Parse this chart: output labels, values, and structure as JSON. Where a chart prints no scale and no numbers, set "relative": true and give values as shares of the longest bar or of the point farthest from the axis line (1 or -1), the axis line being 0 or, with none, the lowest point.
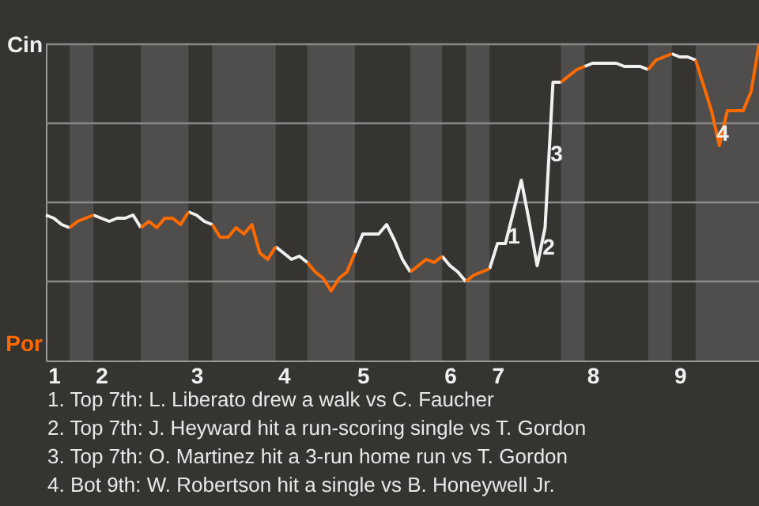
{
  "chart_data": {
    "type": "line",
    "relative": true,
    "tick_labels": "x",
    "categories": [
      null,
      "1",
      null,
      null,
      null,
      null,
      null,
      "2",
      null,
      null,
      null,
      null,
      null,
      null,
      null,
      null,
      null,
      null,
      null,
      "3",
      null,
      null,
      null,
      null,
      null,
      null,
      null,
      null,
      null,
      null,
      "4",
      null,
      null,
      null,
      null,
      null,
      null,
      null,
      null,
      null,
      "5",
      null,
      null,
      null,
      null,
      null,
      null,
      null,
      null,
      null,
      null,
      "6",
      null,
      null,
      null,
      null,
      null,
      "7",
      null,
      null,
      null,
      null,
      null,
      null,
      null,
      null,
      null,
      null,
      null,
      "8",
      null,
      null,
      null,
      null,
      null,
      null,
      null,
      null,
      null,
      null,
      "9",
      null,
      null,
      null,
      null,
      null,
      null,
      null,
      null,
      null,
      null
    ],
    "series": [
      {
        "color": "#f0f0f0",
        "values": [
          0.46,
          0.45,
          0.43,
          0.42,
          null,
          null,
          0.46,
          0.45,
          0.44,
          0.45,
          0.45,
          0.46,
          0.42,
          null,
          null,
          null,
          null,
          null,
          0.47,
          0.46,
          0.44,
          0.43,
          null,
          null,
          null,
          null,
          null,
          null,
          null,
          0.36,
          0.34,
          0.32,
          0.33,
          0.31,
          null,
          null,
          null,
          null,
          null,
          0.34,
          0.4,
          0.4,
          0.4,
          0.43,
          0.38,
          0.32,
          0.28,
          null,
          null,
          null,
          0.33,
          0.3,
          0.28,
          0.25,
          null,
          null,
          0.29,
          0.37,
          0.37,
          0.47,
          0.57,
          0.44,
          0.3,
          0.42,
          0.88,
          0.88,
          null,
          null,
          0.93,
          0.94,
          0.94,
          0.94,
          0.94,
          0.93,
          0.93,
          0.93,
          0.92,
          null,
          null,
          0.97,
          0.96,
          0.96,
          0.95,
          null,
          null,
          null,
          null,
          null,
          null,
          null,
          null
        ]
      },
      {
        "color": "#ff6a00",
        "values": [
          null,
          null,
          null,
          0.42,
          0.44,
          0.45,
          0.46,
          null,
          null,
          null,
          null,
          null,
          0.42,
          0.44,
          0.42,
          0.45,
          0.45,
          0.43,
          0.47,
          null,
          null,
          0.43,
          0.39,
          0.39,
          0.42,
          0.4,
          0.43,
          0.34,
          0.32,
          0.36,
          null,
          null,
          null,
          0.31,
          0.28,
          0.26,
          0.22,
          0.26,
          0.28,
          0.34,
          null,
          null,
          null,
          null,
          null,
          null,
          0.28,
          0.3,
          0.32,
          0.31,
          0.33,
          null,
          null,
          0.25,
          0.27,
          0.28,
          0.29,
          null,
          null,
          null,
          null,
          null,
          null,
          null,
          null,
          0.88,
          0.9,
          0.92,
          0.93,
          null,
          null,
          null,
          null,
          null,
          null,
          null,
          0.92,
          0.95,
          0.96,
          0.97,
          null,
          null,
          0.95,
          0.87,
          0.79,
          0.68,
          0.79,
          0.79,
          0.79,
          0.85,
          1.0
        ]
      }
    ],
    "grid": "y",
    "annotations": [
      "Cin",
      "Por",
      "1",
      "2",
      "3",
      "4",
      "1. Top 7th: L. Liberato drew a walk vs C. Faucher",
      "2. Top 7th: J. Heyward hit a run-scoring single vs T. Gordon",
      "3. Top 7th: O. Martinez hit a 3-run home run vs T. Gordon",
      "4. Bot 9th: W. Robertson hit a single vs B. Honeywell Jr."
    ],
    "marker": "none",
    "line_style": "solid"
  }
}
